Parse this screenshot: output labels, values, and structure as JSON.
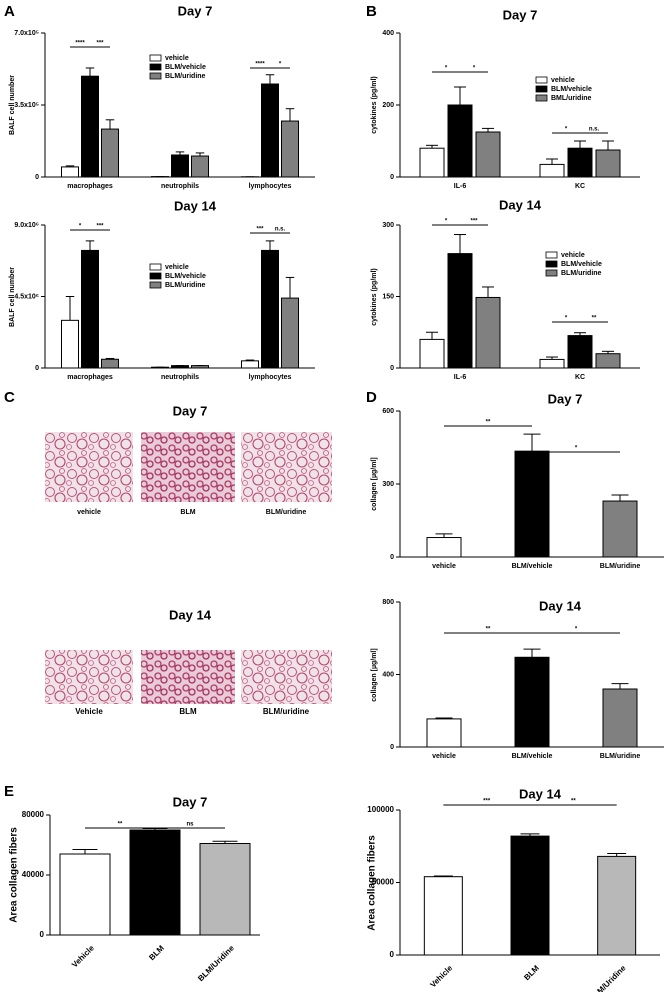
{
  "panel_labels": [
    "A",
    "B",
    "C",
    "D",
    "E"
  ],
  "histology": [
    {
      "title": "Day 7",
      "labels": [
        "vehicle",
        "BLM",
        "BLM/uridine"
      ]
    },
    {
      "title": "Day 14",
      "labels": [
        "Vehicle",
        "BLM",
        "BLM/uridine"
      ]
    }
  ],
  "chart_data": [
    {
      "type": "grouped_bar",
      "title": "Day 7",
      "y_label": "BALF cell number",
      "categories": [
        "macrophages",
        "neutrophils",
        "lymphocytes"
      ],
      "series": [
        {
          "name": "vehicle",
          "color": "#ffffff",
          "values": [
            49000,
            2000,
            1000
          ],
          "errors": [
            5000,
            0,
            0
          ]
        },
        {
          "name": "BLM/vehicle",
          "color": "#000000",
          "values": [
            490000,
            107000,
            452000
          ],
          "errors": [
            40000,
            15000,
            45000
          ]
        },
        {
          "name": "BLM/uridine",
          "color": "#808080",
          "values": [
            233000,
            102000,
            272000
          ],
          "errors": [
            45000,
            15000,
            60000
          ]
        }
      ],
      "ylim": [
        0,
        700000
      ],
      "yticks": [
        0,
        {
          "value": 350000,
          "label": "3.5x10⁵"
        },
        {
          "value": 700000,
          "label": "7.0x10⁵"
        }
      ],
      "annotations": [
        "****",
        "***",
        "****",
        "*"
      ],
      "legend": true
    },
    {
      "type": "grouped_bar",
      "title": "Day 14",
      "y_label": "BALF cell number",
      "categories": [
        "macrophages",
        "neutrophils",
        "lymphocytes"
      ],
      "series": [
        {
          "name": "vehicle",
          "color": "#ffffff",
          "values": [
            3000000,
            50000,
            450000
          ],
          "errors": [
            1500000,
            0,
            50000
          ]
        },
        {
          "name": "BLM/vehicle",
          "color": "#000000",
          "values": [
            7400000,
            150000,
            7400000
          ],
          "errors": [
            600000,
            0,
            600000
          ]
        },
        {
          "name": "BLM/uridine",
          "color": "#808080",
          "values": [
            550000,
            150000,
            4400000
          ],
          "errors": [
            50000,
            0,
            1300000
          ]
        }
      ],
      "ylim": [
        0,
        9000000
      ],
      "yticks": [
        0,
        {
          "value": 4500000,
          "label": "4.5x10⁶"
        },
        {
          "value": 9000000,
          "label": "9.0x10⁶"
        }
      ],
      "annotations": [
        "*",
        "***",
        "***",
        "n.s."
      ],
      "legend": true
    },
    {
      "type": "grouped_bar",
      "title": "Day 7",
      "y_label": "cytokines (pg/ml)",
      "categories": [
        "IL-6",
        "KC"
      ],
      "series": [
        {
          "name": "vehicle",
          "color": "#ffffff",
          "values": [
            80,
            35
          ],
          "errors": [
            8,
            15
          ]
        },
        {
          "name": "BLM/vehicle",
          "color": "#000000",
          "values": [
            200,
            80
          ],
          "errors": [
            50,
            20
          ]
        },
        {
          "name": "BML/uridine",
          "color": "#808080",
          "values": [
            125,
            75
          ],
          "errors": [
            10,
            25
          ]
        }
      ],
      "ylim": [
        0,
        400
      ],
      "yticks": [
        0,
        200,
        400
      ],
      "annotations": [
        "*",
        "*",
        "*",
        "n.s."
      ],
      "legend": true
    },
    {
      "type": "grouped_bar",
      "title": "Day 14",
      "y_label": "cytokines (pg/ml)",
      "categories": [
        "IL-6",
        "KC"
      ],
      "series": [
        {
          "name": "vehicle",
          "color": "#ffffff",
          "values": [
            60,
            18
          ],
          "errors": [
            15,
            5
          ]
        },
        {
          "name": "BLM/vehicle",
          "color": "#000000",
          "values": [
            240,
            68
          ],
          "errors": [
            40,
            6
          ]
        },
        {
          "name": "BLM/uridine",
          "color": "#808080",
          "values": [
            148,
            30
          ],
          "errors": [
            22,
            5
          ]
        }
      ],
      "ylim": [
        0,
        300
      ],
      "yticks": [
        0,
        150,
        300
      ],
      "annotations": [
        "*",
        "***",
        "*",
        "**"
      ],
      "legend": true
    },
    {
      "type": "bar",
      "title": "Day 7",
      "y_label": "collagen [µg/ml]",
      "categories": [
        "vehicle",
        "BLM/vehicle",
        "BLM/uridine"
      ],
      "values": [
        80,
        435,
        230
      ],
      "errors": [
        15,
        70,
        25
      ],
      "colors": [
        "#ffffff",
        "#000000",
        "#808080"
      ],
      "ylim": [
        0,
        600
      ],
      "yticks": [
        0,
        300,
        600
      ],
      "annotations": [
        "**",
        "*"
      ]
    },
    {
      "type": "bar",
      "title": "Day 14",
      "y_label": "collagen [µg/ml]",
      "categories": [
        "vehicle",
        "BLM/vehicle",
        "BLM/uridine"
      ],
      "values": [
        155,
        495,
        320
      ],
      "errors": [
        5,
        45,
        30
      ],
      "colors": [
        "#ffffff",
        "#000000",
        "#808080"
      ],
      "ylim": [
        0,
        800
      ],
      "yticks": [
        0,
        400,
        800
      ],
      "annotations": [
        "**",
        "*"
      ]
    },
    {
      "type": "bar",
      "title": "Day 7",
      "y_label": "Area collagen fibers",
      "categories": [
        "Vehicle",
        "BLM",
        "BLM/Uridine"
      ],
      "values": [
        54000,
        70000,
        61000
      ],
      "errors": [
        3000,
        1000,
        1500
      ],
      "colors": [
        "#ffffff",
        "#000000",
        "#b8b8b8"
      ],
      "ylim": [
        0,
        80000
      ],
      "yticks": [
        0,
        40000,
        80000
      ],
      "annotations": [
        "**",
        "ns"
      ]
    },
    {
      "type": "bar",
      "title": "Day 14",
      "y_label": "Area collagen fibers",
      "categories": [
        "Vehicle",
        "BLM",
        "BLM/Uridine"
      ],
      "values": [
        54000,
        82000,
        68000
      ],
      "errors": [
        500,
        1500,
        2000
      ],
      "colors": [
        "#ffffff",
        "#000000",
        "#b8b8b8"
      ],
      "ylim": [
        0,
        100000
      ],
      "yticks": [
        0,
        50000,
        100000
      ],
      "annotations": [
        "***",
        "**"
      ]
    }
  ]
}
